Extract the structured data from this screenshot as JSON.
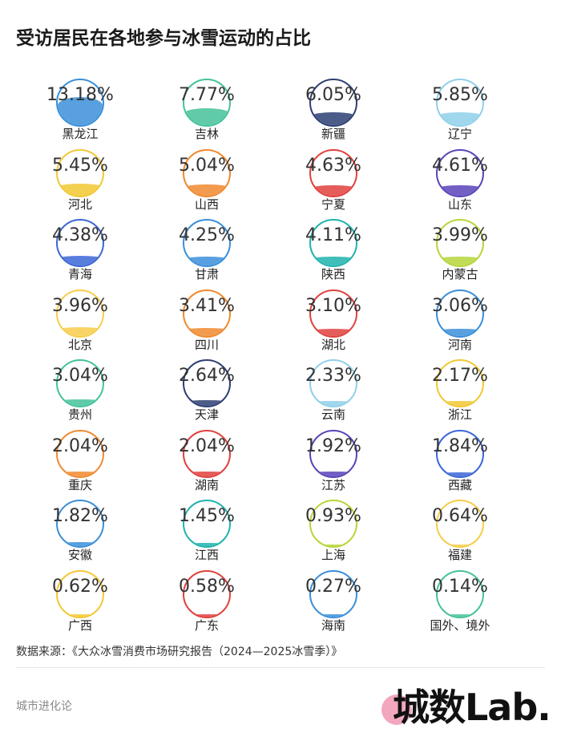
{
  "title": "受访居民在各地参与冰雪运动的占比",
  "chart_data": {
    "type": "bubble-grid",
    "title": "受访居民在各地参与冰雪运动的占比",
    "unit": "%",
    "items": [
      {
        "region": "黑龙江",
        "value": 13.18,
        "label": "13.18%",
        "color": "#3b8fd9"
      },
      {
        "region": "吉林",
        "value": 7.77,
        "label": "7.77%",
        "color": "#45c29a"
      },
      {
        "region": "新疆",
        "value": 6.05,
        "label": "6.05%",
        "color": "#2d3f73"
      },
      {
        "region": "辽宁",
        "value": 5.85,
        "label": "5.85%",
        "color": "#8fd0ea"
      },
      {
        "region": "河北",
        "value": 5.45,
        "label": "5.45%",
        "color": "#f2c833"
      },
      {
        "region": "山西",
        "value": 5.04,
        "label": "5.04%",
        "color": "#f08a2f"
      },
      {
        "region": "宁夏",
        "value": 4.63,
        "label": "4.63%",
        "color": "#e0413e"
      },
      {
        "region": "山东",
        "value": 4.61,
        "label": "4.61%",
        "color": "#5a43b8"
      },
      {
        "region": "青海",
        "value": 4.38,
        "label": "4.38%",
        "color": "#3c66d6"
      },
      {
        "region": "甘肃",
        "value": 4.25,
        "label": "4.25%",
        "color": "#3b8fd9"
      },
      {
        "region": "陕西",
        "value": 4.11,
        "label": "4.11%",
        "color": "#1fb3ae"
      },
      {
        "region": "内蒙古",
        "value": 3.99,
        "label": "3.99%",
        "color": "#b6d63a"
      },
      {
        "region": "北京",
        "value": 3.96,
        "label": "3.96%",
        "color": "#f6cd4a"
      },
      {
        "region": "四川",
        "value": 3.41,
        "label": "3.41%",
        "color": "#f08a2f"
      },
      {
        "region": "湖北",
        "value": 3.1,
        "label": "3.10%",
        "color": "#e0413e"
      },
      {
        "region": "河南",
        "value": 3.06,
        "label": "3.06%",
        "color": "#3b8fd9"
      },
      {
        "region": "贵州",
        "value": 3.04,
        "label": "3.04%",
        "color": "#45c29a"
      },
      {
        "region": "天津",
        "value": 2.64,
        "label": "2.64%",
        "color": "#2d3f73"
      },
      {
        "region": "云南",
        "value": 2.33,
        "label": "2.33%",
        "color": "#8fd0ea"
      },
      {
        "region": "浙江",
        "value": 2.17,
        "label": "2.17%",
        "color": "#f2c833"
      },
      {
        "region": "重庆",
        "value": 2.04,
        "label": "2.04%",
        "color": "#f08a2f"
      },
      {
        "region": "湖南",
        "value": 2.04,
        "label": "2.04%",
        "color": "#e0413e"
      },
      {
        "region": "江苏",
        "value": 1.92,
        "label": "1.92%",
        "color": "#5a43b8"
      },
      {
        "region": "西藏",
        "value": 1.84,
        "label": "1.84%",
        "color": "#3c66d6"
      },
      {
        "region": "安徽",
        "value": 1.82,
        "label": "1.82%",
        "color": "#3b8fd9"
      },
      {
        "region": "江西",
        "value": 1.45,
        "label": "1.45%",
        "color": "#1fb3ae"
      },
      {
        "region": "上海",
        "value": 0.93,
        "label": "0.93%",
        "color": "#b6d63a"
      },
      {
        "region": "福建",
        "value": 0.64,
        "label": "0.64%",
        "color": "#f6cd4a"
      },
      {
        "region": "广西",
        "value": 0.62,
        "label": "0.62%",
        "color": "#f2c833"
      },
      {
        "region": "广东",
        "value": 0.58,
        "label": "0.58%",
        "color": "#e0413e"
      },
      {
        "region": "海南",
        "value": 0.27,
        "label": "0.27%",
        "color": "#3b8fd9"
      },
      {
        "region": "国外、境外",
        "value": 0.14,
        "label": "0.14%",
        "color": "#45c29a"
      }
    ]
  },
  "source": "数据来源：《大众冰雪消费市场研究报告（2024—2025冰雪季）》",
  "footer": {
    "left": "城市进化论",
    "logo": "城数Lab."
  }
}
